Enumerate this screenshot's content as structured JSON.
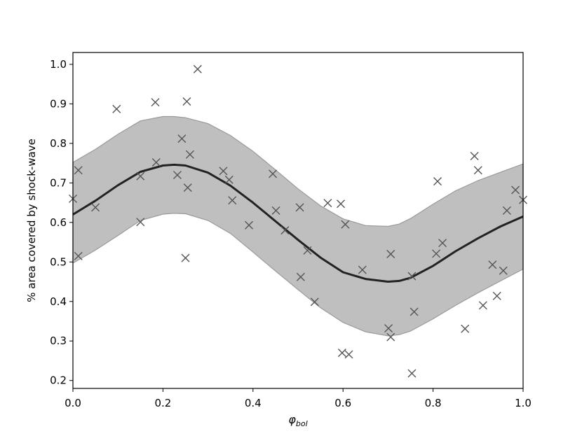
{
  "chart_data": {
    "type": "scatter",
    "xlabel": "φ",
    "xlabel_sub": "bol",
    "ylabel": "% area covered by shock-wave",
    "xlim": [
      0.0,
      1.0
    ],
    "ylim": [
      0.18,
      1.03
    ],
    "x_ticks": [
      0.0,
      0.2,
      0.4,
      0.6,
      0.8,
      1.0
    ],
    "x_tick_labels": [
      "0.0",
      "0.2",
      "0.4",
      "0.6",
      "0.8",
      "1.0"
    ],
    "y_ticks": [
      0.2,
      0.3,
      0.4,
      0.5,
      0.6,
      0.7,
      0.8,
      0.9,
      1.0
    ],
    "y_tick_labels": [
      "0.2",
      "0.3",
      "0.4",
      "0.5",
      "0.6",
      "0.7",
      "0.8",
      "0.9",
      "1.0"
    ],
    "grid": false,
    "legend": "none",
    "colors": {
      "band": "#bfbfbf",
      "band_edge": "#9a9a9a",
      "fit_line": "#222222",
      "markers": "#555555",
      "axes": "#000000"
    },
    "points": {
      "marker": "x",
      "x": [
        0.0,
        0.012,
        0.012,
        0.05,
        0.097,
        0.15,
        0.15,
        0.183,
        0.185,
        0.232,
        0.242,
        0.25,
        0.253,
        0.255,
        0.26,
        0.277,
        0.334,
        0.347,
        0.354,
        0.391,
        0.444,
        0.451,
        0.471,
        0.504,
        0.506,
        0.521,
        0.537,
        0.566,
        0.595,
        0.598,
        0.605,
        0.613,
        0.643,
        0.701,
        0.706,
        0.706,
        0.753,
        0.753,
        0.758,
        0.807,
        0.81,
        0.821,
        0.871,
        0.892,
        0.9,
        0.911,
        0.932,
        0.942,
        0.956,
        0.964,
        0.983,
        1.0
      ],
      "y": [
        0.66,
        0.732,
        0.515,
        0.638,
        0.887,
        0.717,
        0.601,
        0.904,
        0.752,
        0.72,
        0.812,
        0.51,
        0.906,
        0.688,
        0.772,
        0.988,
        0.73,
        0.708,
        0.656,
        0.593,
        0.723,
        0.63,
        0.58,
        0.638,
        0.462,
        0.529,
        0.399,
        0.649,
        0.647,
        0.27,
        0.595,
        0.266,
        0.48,
        0.332,
        0.31,
        0.52,
        0.218,
        0.464,
        0.374,
        0.521,
        0.704,
        0.548,
        0.331,
        0.768,
        0.732,
        0.39,
        0.493,
        0.414,
        0.478,
        0.63,
        0.682,
        0.657
      ]
    },
    "fit": {
      "x": [
        0.0,
        0.05,
        0.1,
        0.15,
        0.2,
        0.225,
        0.25,
        0.3,
        0.35,
        0.4,
        0.45,
        0.5,
        0.55,
        0.6,
        0.65,
        0.7,
        0.725,
        0.75,
        0.8,
        0.85,
        0.9,
        0.95,
        1.0
      ],
      "y": [
        0.62,
        0.655,
        0.694,
        0.728,
        0.744,
        0.746,
        0.744,
        0.726,
        0.693,
        0.65,
        0.603,
        0.556,
        0.511,
        0.474,
        0.457,
        0.45,
        0.452,
        0.46,
        0.49,
        0.527,
        0.56,
        0.59,
        0.615
      ]
    },
    "band_upper": [
      0.752,
      0.785,
      0.823,
      0.857,
      0.868,
      0.868,
      0.865,
      0.85,
      0.82,
      0.78,
      0.733,
      0.685,
      0.642,
      0.609,
      0.592,
      0.59,
      0.596,
      0.61,
      0.646,
      0.68,
      0.706,
      0.727,
      0.748
    ],
    "band_lower": [
      0.497,
      0.53,
      0.567,
      0.605,
      0.621,
      0.623,
      0.622,
      0.605,
      0.572,
      0.525,
      0.477,
      0.43,
      0.384,
      0.347,
      0.323,
      0.313,
      0.316,
      0.325,
      0.356,
      0.39,
      0.422,
      0.452,
      0.482
    ]
  }
}
